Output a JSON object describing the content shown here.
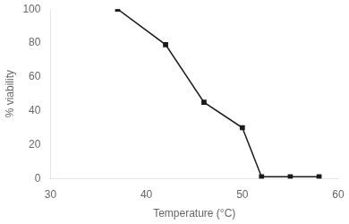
{
  "chart_data": {
    "type": "line",
    "x": [
      37,
      42,
      46,
      50,
      52,
      55,
      58
    ],
    "values": [
      100,
      79,
      45,
      30,
      1,
      1,
      1
    ],
    "xlim": [
      30,
      60
    ],
    "ylim": [
      0,
      100
    ],
    "xticks": [
      30,
      40,
      50,
      60
    ],
    "yticks": [
      0,
      20,
      40,
      60,
      80,
      100
    ],
    "xlabel": "Temperature (°C)",
    "ylabel": "% viability",
    "color": "#1a1a1a",
    "marker": "square",
    "grid": false
  }
}
